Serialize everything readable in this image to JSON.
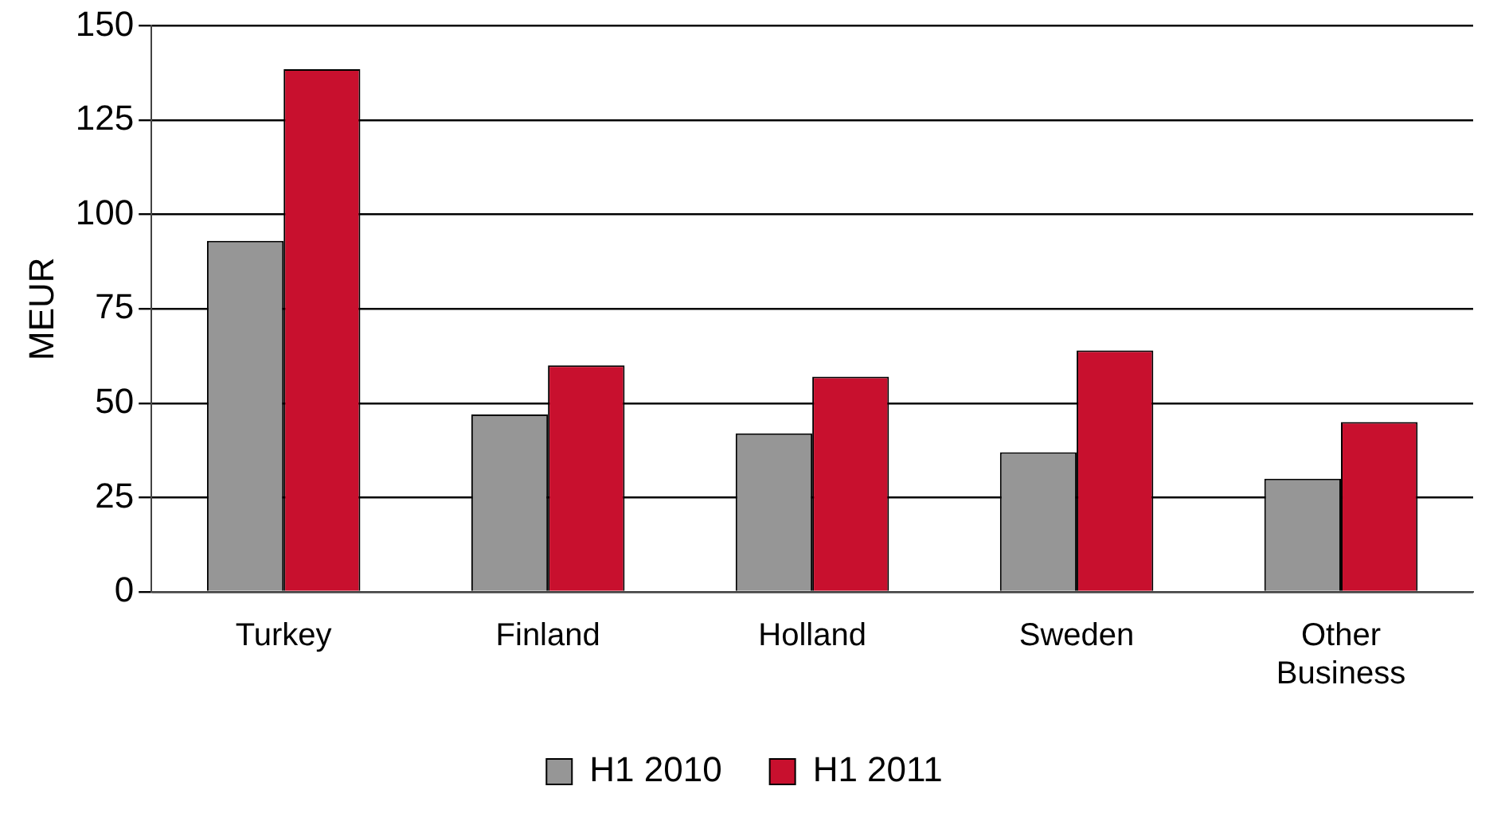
{
  "chart_data": {
    "type": "bar",
    "ylabel": "MEUR",
    "categories": [
      "Turkey",
      "Finland",
      "Holland",
      "Sweden",
      "Other Business"
    ],
    "series": [
      {
        "name": "H1 2010",
        "color": "#969696",
        "values": [
          93,
          47,
          42,
          37,
          30
        ]
      },
      {
        "name": "H1 2011",
        "color": "#c8102e",
        "values": [
          138.5,
          60,
          57,
          64,
          45
        ]
      }
    ],
    "ylim": [
      0,
      150
    ],
    "yticks": [
      0,
      25,
      50,
      75,
      100,
      125,
      150
    ],
    "grid": "y",
    "legend": "bottom"
  }
}
